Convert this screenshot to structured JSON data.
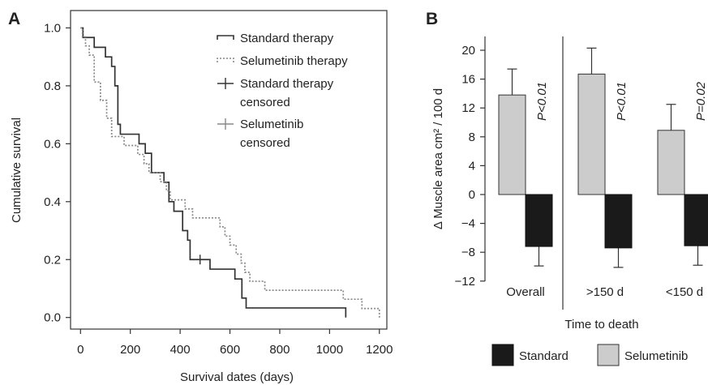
{
  "chart_data": [
    {
      "panel": "A",
      "type": "line",
      "xlabel": "Survival dates (days)",
      "ylabel": "Cumulative survival",
      "xlim": [
        -40,
        1230
      ],
      "ylim": [
        -0.04,
        1.06
      ],
      "xticks": [
        "0",
        "200",
        "400",
        "600",
        "800",
        "1000",
        "1200"
      ],
      "yticks": [
        "0.0",
        "0.2",
        "0.4",
        "0.6",
        "0.8",
        "1.0"
      ],
      "legend": {
        "placement": "top-right",
        "entries": [
          "Standard therapy",
          "Selumetinib therapy",
          "Standard therapy",
          "censored",
          "Selumetinib",
          "censored"
        ]
      },
      "series": [
        {
          "name": "Standard therapy",
          "style": "solid",
          "color": "#333333",
          "steps": [
            [
              0,
              1.0
            ],
            [
              10,
              0.967
            ],
            [
              55,
              0.933
            ],
            [
              100,
              0.9
            ],
            [
              125,
              0.867
            ],
            [
              138,
              0.8
            ],
            [
              150,
              0.667
            ],
            [
              160,
              0.633
            ],
            [
              235,
              0.6
            ],
            [
              260,
              0.567
            ],
            [
              285,
              0.5
            ],
            [
              335,
              0.467
            ],
            [
              355,
              0.4
            ],
            [
              375,
              0.367
            ],
            [
              410,
              0.3
            ],
            [
              430,
              0.267
            ],
            [
              440,
              0.2
            ],
            [
              520,
              0.167
            ],
            [
              620,
              0.133
            ],
            [
              648,
              0.067
            ],
            [
              665,
              0.033
            ],
            [
              1065,
              0.0
            ]
          ],
          "censored": [
            [
              480,
              0.2
            ]
          ]
        },
        {
          "name": "Selumetinib therapy",
          "style": "dotted",
          "color": "#888888",
          "steps": [
            [
              0,
              1.0
            ],
            [
              8,
              0.969
            ],
            [
              20,
              0.938
            ],
            [
              35,
              0.906
            ],
            [
              55,
              0.813
            ],
            [
              80,
              0.75
            ],
            [
              105,
              0.688
            ],
            [
              125,
              0.625
            ],
            [
              175,
              0.594
            ],
            [
              230,
              0.563
            ],
            [
              255,
              0.531
            ],
            [
              275,
              0.5
            ],
            [
              320,
              0.469
            ],
            [
              345,
              0.438
            ],
            [
              360,
              0.406
            ],
            [
              420,
              0.375
            ],
            [
              450,
              0.344
            ],
            [
              560,
              0.313
            ],
            [
              580,
              0.281
            ],
            [
              600,
              0.25
            ],
            [
              625,
              0.219
            ],
            [
              645,
              0.188
            ],
            [
              660,
              0.156
            ],
            [
              680,
              0.125
            ],
            [
              740,
              0.094
            ],
            [
              1055,
              0.063
            ],
            [
              1130,
              0.031
            ],
            [
              1200,
              0.0
            ]
          ],
          "censored": []
        }
      ]
    },
    {
      "panel": "B",
      "type": "bar",
      "ylabel": "Δ Muscle area cm² / 100 d",
      "xlabel": "Time to death",
      "ylim": [
        -12,
        22
      ],
      "yticks": [
        "20",
        "16",
        "12",
        "8",
        "4",
        "0",
        "−4",
        "−8",
        "−12"
      ],
      "categories": [
        "Overall",
        ">150 d",
        "<150 d"
      ],
      "series": [
        {
          "name": "Selumetinib",
          "color": "#cccccc",
          "values": [
            13.8,
            16.7,
            8.9
          ],
          "errors": [
            3.6,
            3.6,
            3.6
          ]
        },
        {
          "name": "Standard",
          "color": "#1a1a1a",
          "values": [
            -7.2,
            -7.4,
            -7.1
          ],
          "errors": [
            2.7,
            2.7,
            2.7
          ]
        }
      ],
      "annotations": [
        "P<0.01",
        "P<0.01",
        "P=0.02"
      ],
      "legend": {
        "placement": "bottom",
        "entries": [
          "Standard",
          "Selumetinib"
        ]
      }
    }
  ]
}
